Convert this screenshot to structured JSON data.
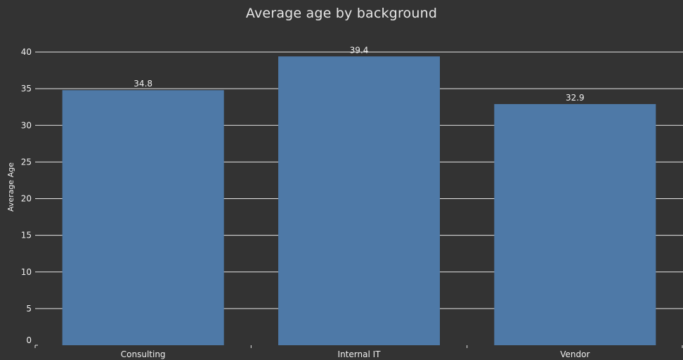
{
  "chart_data": {
    "type": "bar",
    "title": "Average age by background",
    "xlabel": "",
    "ylabel": "Average Age",
    "categories": [
      "Consulting",
      "Internal IT",
      "Vendor"
    ],
    "values": [
      34.8,
      39.4,
      32.9
    ],
    "data_labels": [
      "34.8",
      "39.4",
      "32.9"
    ],
    "ylim": [
      0,
      40
    ],
    "yticks": [
      0,
      5,
      10,
      15,
      20,
      25,
      30,
      35,
      40
    ],
    "grid": true,
    "legend": "none",
    "colors": {
      "background": "#333333",
      "bar": "#4e79a7",
      "grid": "#e8e8e8",
      "text": "#f0f0f0"
    }
  }
}
